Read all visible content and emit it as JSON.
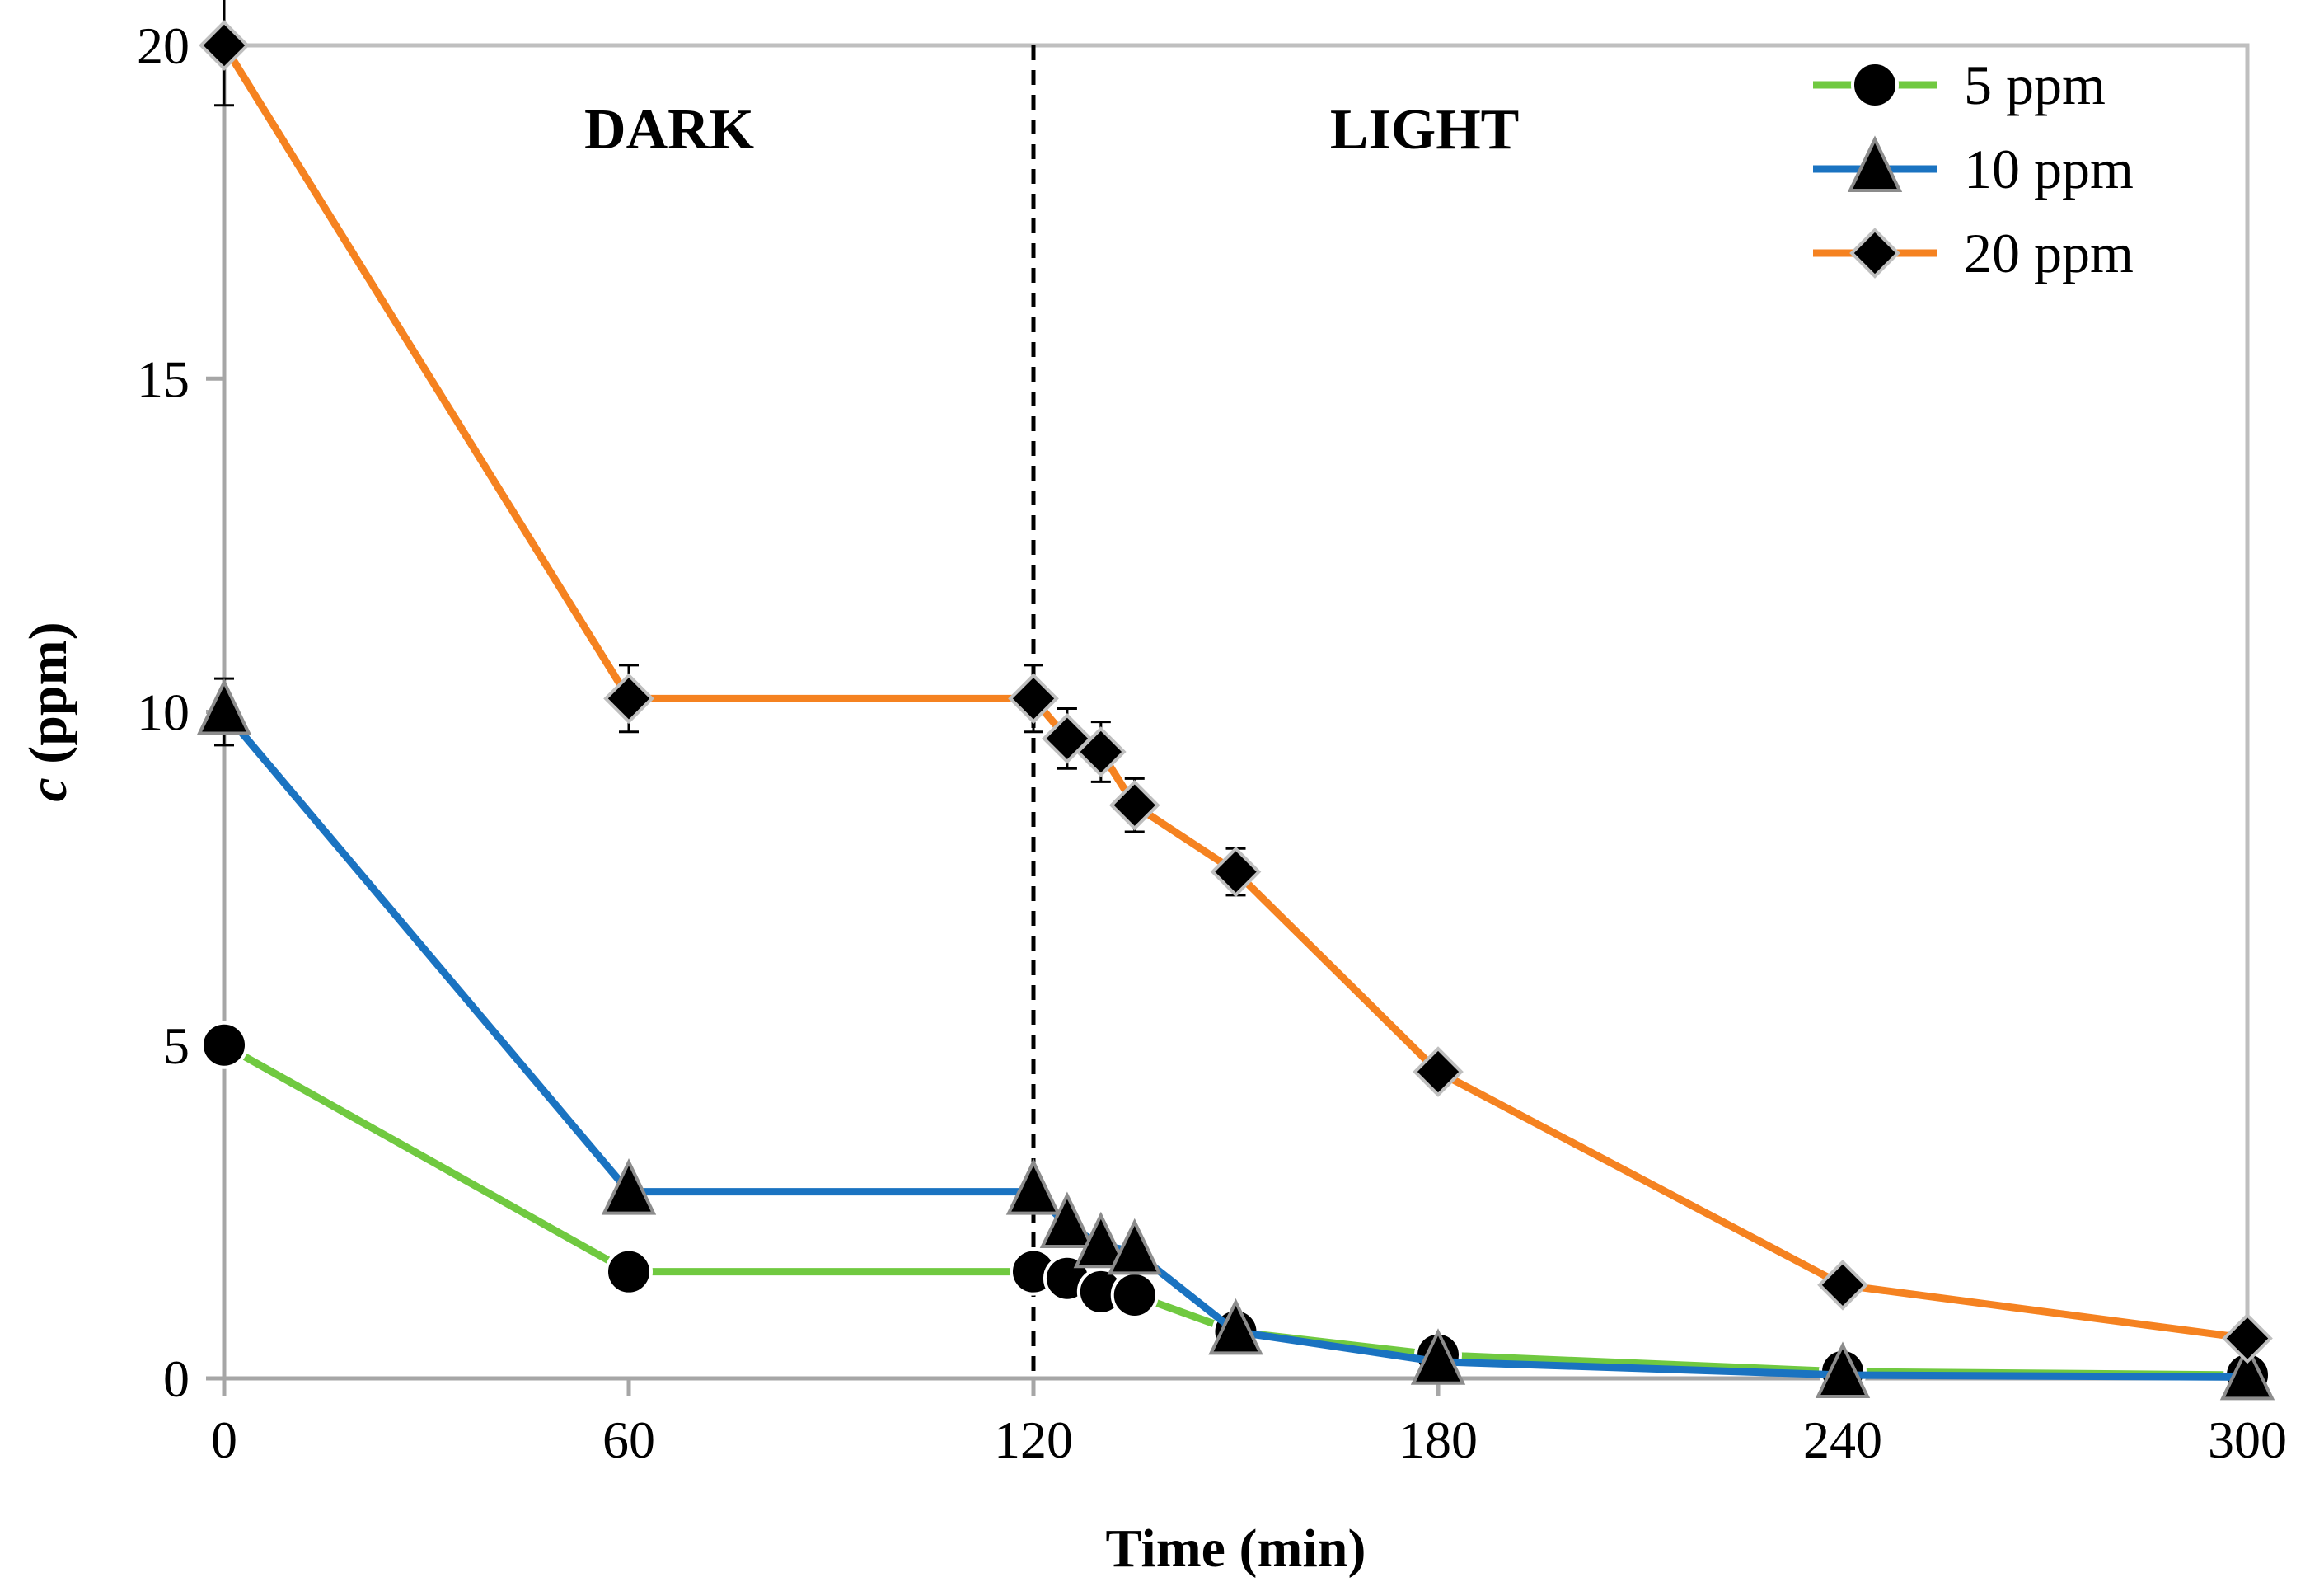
{
  "chart_data": {
    "type": "line",
    "title": "",
    "xlabel": "Time (min)",
    "ylabel_italic": "c",
    "ylabel_rest": " (ppm)",
    "xlim": [
      0,
      300
    ],
    "ylim": [
      0,
      20
    ],
    "x_ticks": [
      0,
      60,
      120,
      180,
      240,
      300
    ],
    "y_ticks": [
      0,
      5,
      10,
      15,
      20
    ],
    "grid": false,
    "legend_position": "top-right",
    "divider_x": 120,
    "regions": [
      {
        "label": "DARK",
        "x": 66
      },
      {
        "label": "LIGHT",
        "x": 178
      }
    ],
    "series": [
      {
        "name": "5 ppm",
        "color": "#70c940",
        "marker": "circle",
        "x": [
          0,
          60,
          120,
          125,
          130,
          135,
          150,
          180,
          240,
          300
        ],
        "y": [
          5.0,
          1.6,
          1.6,
          1.5,
          1.3,
          1.25,
          0.7,
          0.35,
          0.1,
          0.05
        ],
        "err": [
          0,
          0,
          0,
          0,
          0,
          0,
          0,
          0,
          0,
          0
        ]
      },
      {
        "name": "10 ppm",
        "color": "#1a73c1",
        "marker": "triangle",
        "x": [
          0,
          60,
          120,
          125,
          130,
          135,
          150,
          180,
          240,
          300
        ],
        "y": [
          10.0,
          2.8,
          2.8,
          2.3,
          2.0,
          1.9,
          0.7,
          0.25,
          0.05,
          0.02
        ],
        "err": [
          0.5,
          0,
          0,
          0,
          0,
          0,
          0,
          0,
          0,
          0
        ]
      },
      {
        "name": "20 ppm",
        "color": "#f58220",
        "marker": "diamond",
        "x": [
          0,
          60,
          120,
          125,
          130,
          135,
          150,
          180,
          240,
          300
        ],
        "y": [
          20.0,
          10.2,
          10.2,
          9.6,
          9.4,
          8.6,
          7.6,
          4.6,
          1.4,
          0.6
        ],
        "err": [
          0.9,
          0.5,
          0.5,
          0.45,
          0.45,
          0.4,
          0.35,
          0.2,
          0,
          0
        ]
      }
    ]
  }
}
